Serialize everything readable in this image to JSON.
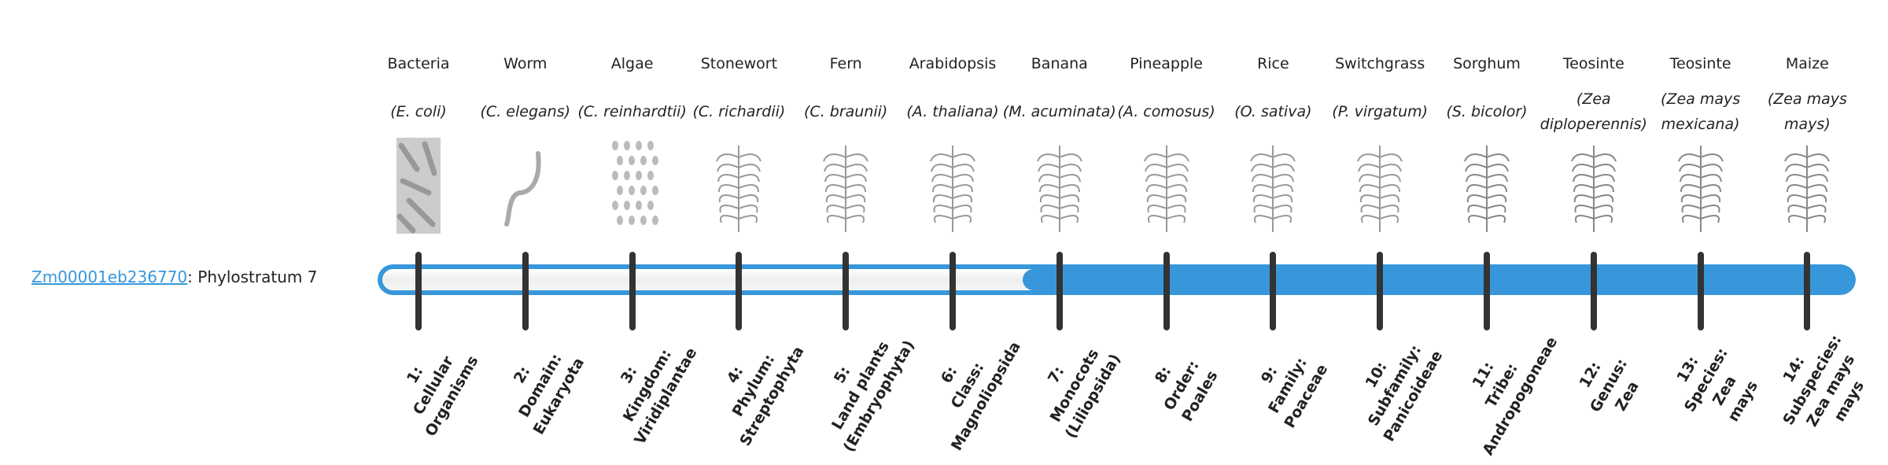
{
  "gene": {
    "id": "Zm00001eb236770",
    "separator": ": ",
    "phylostratum_label": "Phylostratum 7",
    "phylostratum": 7
  },
  "colors": {
    "accent": "#3897db",
    "tick": "#333333"
  },
  "strata": [
    {
      "common": "Bacteria",
      "scientific": "(E. coli)",
      "icon": "bacteria-icon",
      "label_lines": [
        "1:",
        "Cellular",
        "Organisms"
      ]
    },
    {
      "common": "Worm",
      "scientific": "(C. elegans)",
      "icon": "worm-icon",
      "label_lines": [
        "2:",
        "Domain:",
        "Eukaryota"
      ]
    },
    {
      "common": "Algae",
      "scientific": "(C. reinhardtii)",
      "icon": "algae-icon",
      "label_lines": [
        "3:",
        "Kingdom:",
        "Viridiplantae"
      ]
    },
    {
      "common": "Stonewort",
      "scientific": "(C. richardii)",
      "icon": "stonewort-icon",
      "label_lines": [
        "4:",
        "Phylum:",
        "Streptophyta"
      ]
    },
    {
      "common": "Fern",
      "scientific": "(C. braunii)",
      "icon": "fern-icon",
      "label_lines": [
        "5:",
        "Land plants",
        "(Embryophyta)"
      ]
    },
    {
      "common": "Arabidopsis",
      "scientific": "(A. thaliana)",
      "icon": "arabidopsis-icon",
      "label_lines": [
        "6:",
        "Class:",
        "Magnoliopsida"
      ]
    },
    {
      "common": "Banana",
      "scientific": "(M. acuminata)",
      "icon": "banana-icon",
      "label_lines": [
        "7:",
        "Monocots",
        "(Liliopsida)"
      ]
    },
    {
      "common": "Pineapple",
      "scientific": "(A. comosus)",
      "icon": "pineapple-icon",
      "label_lines": [
        "8:",
        "Order:",
        "Poales"
      ]
    },
    {
      "common": "Rice",
      "scientific": "(O. sativa)",
      "icon": "rice-icon",
      "label_lines": [
        "9:",
        "Family:",
        "Poaceae"
      ]
    },
    {
      "common": "Switchgrass",
      "scientific": "(P. virgatum)",
      "icon": "switchgrass-icon",
      "label_lines": [
        "10:",
        "Subfamily:",
        "Panicoideae"
      ]
    },
    {
      "common": "Sorghum",
      "scientific": "(S. bicolor)",
      "icon": "sorghum-icon",
      "label_lines": [
        "11:",
        "Tribe:",
        "Andropogoneae"
      ]
    },
    {
      "common": "Teosinte",
      "scientific": "(Zea diploperennis)",
      "icon": "teosinte-icon",
      "label_lines": [
        "12:",
        "Genus:",
        "Zea"
      ]
    },
    {
      "common": "Teosinte",
      "scientific": "(Zea mays mexicana)",
      "icon": "teosinte-mexicana-icon",
      "label_lines": [
        "13:",
        "Species:",
        "Zea",
        "mays"
      ]
    },
    {
      "common": "Maize",
      "scientific": "(Zea mays mays)",
      "icon": "maize-icon",
      "label_lines": [
        "14:",
        "Subspecies:",
        "Zea mays",
        "mays"
      ]
    }
  ]
}
